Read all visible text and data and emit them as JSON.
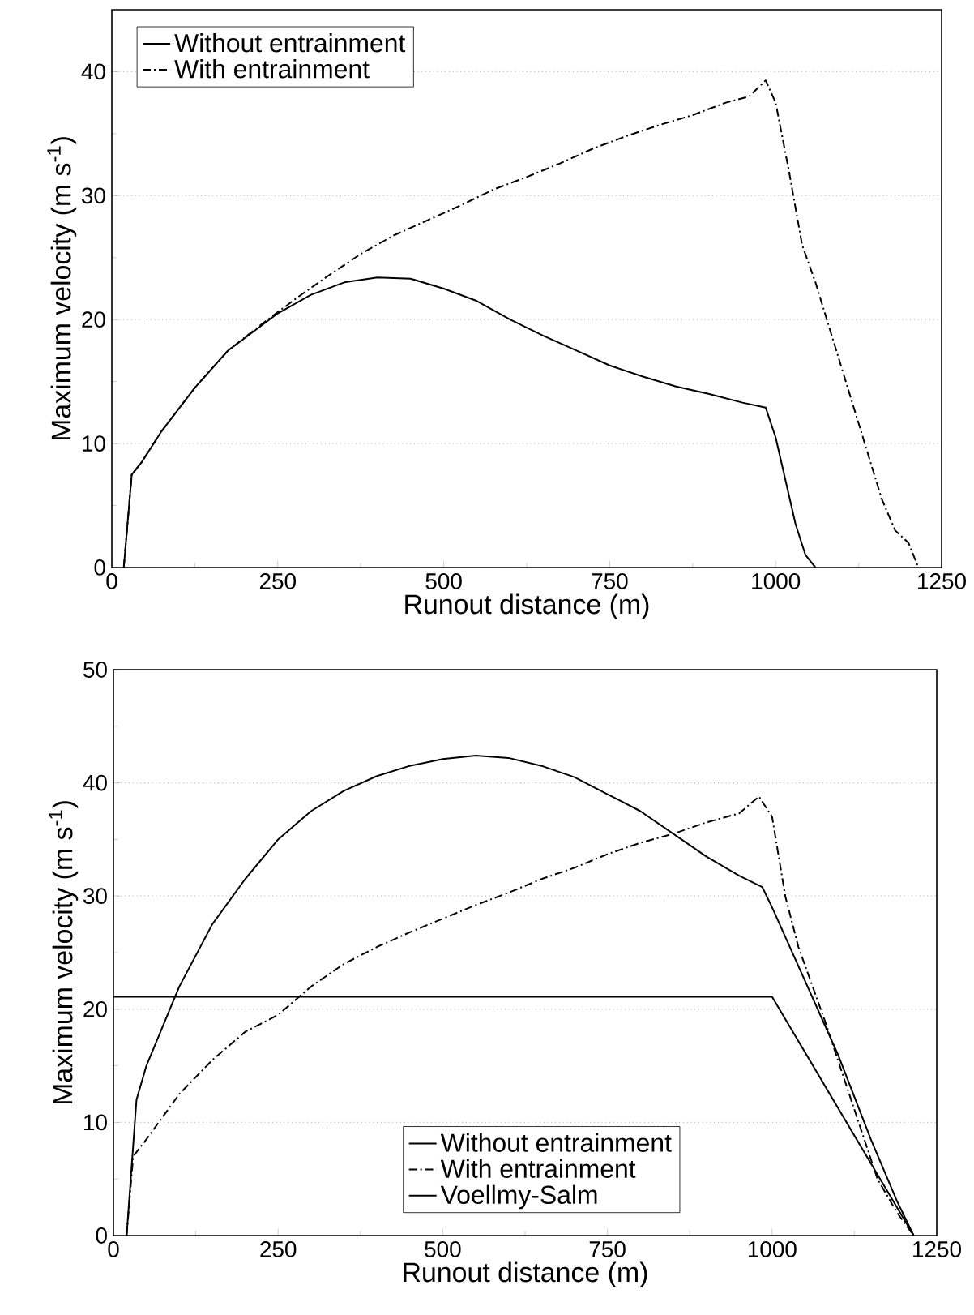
{
  "chart_data": [
    {
      "type": "line",
      "xlabel": "Runout distance (m)",
      "ylabel": "Maximum velocity (m s$^{-1}$)",
      "xlim": [
        0,
        1250
      ],
      "ylim": [
        0,
        45
      ],
      "xticks": [
        0,
        250,
        500,
        750,
        1000,
        1250
      ],
      "yticks": [
        0,
        10,
        20,
        30,
        40
      ],
      "grid": "y",
      "legend": "top left",
      "series": [
        {
          "name": "Without entrainment",
          "color": "#000000",
          "line_style": "solid",
          "x": [
            18,
            30,
            45,
            75,
            125,
            175,
            250,
            300,
            350,
            400,
            450,
            500,
            550,
            600,
            650,
            700,
            750,
            800,
            850,
            900,
            950,
            985,
            1000,
            1015,
            1030,
            1045,
            1060
          ],
          "values": [
            0,
            7.5,
            8.5,
            11,
            14.5,
            17.5,
            20.5,
            22,
            23,
            23.4,
            23.3,
            22.5,
            21.5,
            20,
            18.7,
            17.5,
            16.3,
            15.4,
            14.6,
            14,
            13.3,
            12.9,
            10.5,
            7,
            3.5,
            1,
            0
          ]
        },
        {
          "name": "With entrainment",
          "color": "#000000",
          "line_style": "dashdot",
          "x": [
            18,
            30,
            45,
            75,
            125,
            175,
            230,
            280,
            325,
            375,
            425,
            475,
            525,
            575,
            625,
            675,
            725,
            775,
            825,
            875,
            925,
            960,
            985,
            1000,
            1020,
            1040,
            1060,
            1080,
            1100,
            1120,
            1140,
            1160,
            1180,
            1200,
            1215
          ],
          "values": [
            0,
            7.5,
            8.5,
            11,
            14.5,
            17.5,
            19.8,
            21.8,
            23.5,
            25.3,
            26.8,
            28,
            29.2,
            30.5,
            31.5,
            32.6,
            33.8,
            34.8,
            35.7,
            36.5,
            37.5,
            38,
            39.3,
            37.5,
            32,
            26,
            23,
            19.5,
            16,
            12.5,
            9,
            5.5,
            3,
            2,
            0
          ]
        }
      ]
    },
    {
      "type": "line",
      "xlabel": "Runout distance (m)",
      "ylabel": "Maximum velocity (m s$^{-1}$)",
      "xlim": [
        0,
        1250
      ],
      "ylim": [
        0,
        50
      ],
      "xticks": [
        0,
        250,
        500,
        750,
        1000,
        1250
      ],
      "yticks": [
        0,
        10,
        20,
        30,
        40,
        50
      ],
      "grid": "y",
      "legend": "bottom",
      "series": [
        {
          "name": "Without entrainment",
          "color": "#000000",
          "line_style": "solid",
          "x": [
            20,
            35,
            50,
            100,
            150,
            200,
            250,
            300,
            350,
            400,
            450,
            500,
            550,
            600,
            650,
            700,
            750,
            800,
            850,
            900,
            950,
            985,
            1000,
            1050,
            1100,
            1150,
            1190,
            1215
          ],
          "values": [
            0,
            12,
            15,
            22,
            27.5,
            31.5,
            35,
            37.5,
            39.3,
            40.6,
            41.5,
            42.1,
            42.4,
            42.2,
            41.5,
            40.5,
            39,
            37.5,
            35.5,
            33.5,
            31.8,
            30.8,
            29,
            22.5,
            16,
            8.5,
            3,
            0
          ]
        },
        {
          "name": "With entrainment",
          "color": "#000000",
          "line_style": "dashdot",
          "x": [
            20,
            30,
            50,
            100,
            150,
            200,
            250,
            300,
            350,
            400,
            450,
            500,
            550,
            600,
            650,
            700,
            750,
            800,
            850,
            900,
            950,
            980,
            1000,
            1020,
            1040,
            1080,
            1120,
            1160,
            1190,
            1215
          ],
          "values": [
            0,
            7,
            8.5,
            12.5,
            15.5,
            18,
            19.5,
            22,
            24,
            25.5,
            26.8,
            28,
            29.2,
            30.3,
            31.5,
            32.5,
            33.7,
            34.7,
            35.5,
            36.5,
            37.3,
            38.8,
            37,
            30,
            25.5,
            19,
            12,
            5,
            2,
            0
          ]
        },
        {
          "name": "Voellmy-Salm",
          "color": "#000000",
          "line_style": "solid",
          "x": [
            0,
            1000,
            1215
          ],
          "values": [
            21.1,
            21.1,
            0
          ]
        }
      ]
    }
  ]
}
